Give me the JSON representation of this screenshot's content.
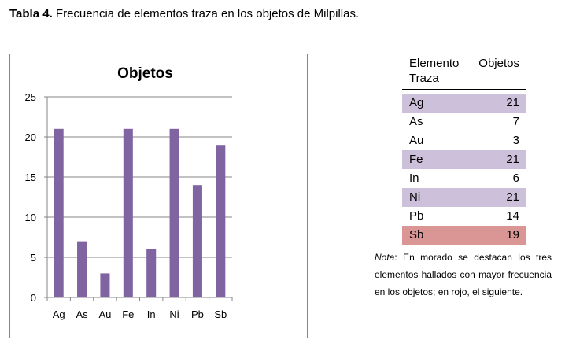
{
  "caption": {
    "label": "Tabla 4.",
    "text": " Frecuencia de elementos traza en los objetos de Milpillas."
  },
  "chart_data": {
    "type": "bar",
    "title": "Objetos",
    "categories": [
      "Ag",
      "As",
      "Au",
      "Fe",
      "In",
      "Ni",
      "Pb",
      "Sb"
    ],
    "values": [
      21,
      7,
      3,
      21,
      6,
      21,
      14,
      19
    ],
    "ylim": [
      0,
      25
    ],
    "yticks": [
      0,
      5,
      10,
      15,
      20,
      25
    ],
    "grid": true,
    "bar_color": "#8064a2"
  },
  "table": {
    "headers": [
      "Elemento Traza",
      "Objetos"
    ],
    "rows": [
      {
        "element": "Ag",
        "count": "21",
        "highlight": "#ccc0da"
      },
      {
        "element": "As",
        "count": "7",
        "highlight": ""
      },
      {
        "element": "Au",
        "count": "3",
        "highlight": ""
      },
      {
        "element": "Fe",
        "count": "21",
        "highlight": "#ccc0da"
      },
      {
        "element": "In",
        "count": "6",
        "highlight": ""
      },
      {
        "element": "Ni",
        "count": "21",
        "highlight": "#ccc0da"
      },
      {
        "element": "Pb",
        "count": "14",
        "highlight": ""
      },
      {
        "element": "Sb",
        "count": "19",
        "highlight": "#da9694"
      }
    ]
  },
  "note": {
    "label": "Nota",
    "text": ": En morado se destacan los tres elementos hallados con mayor frecuencia en los objetos; en rojo, el siguiente."
  }
}
